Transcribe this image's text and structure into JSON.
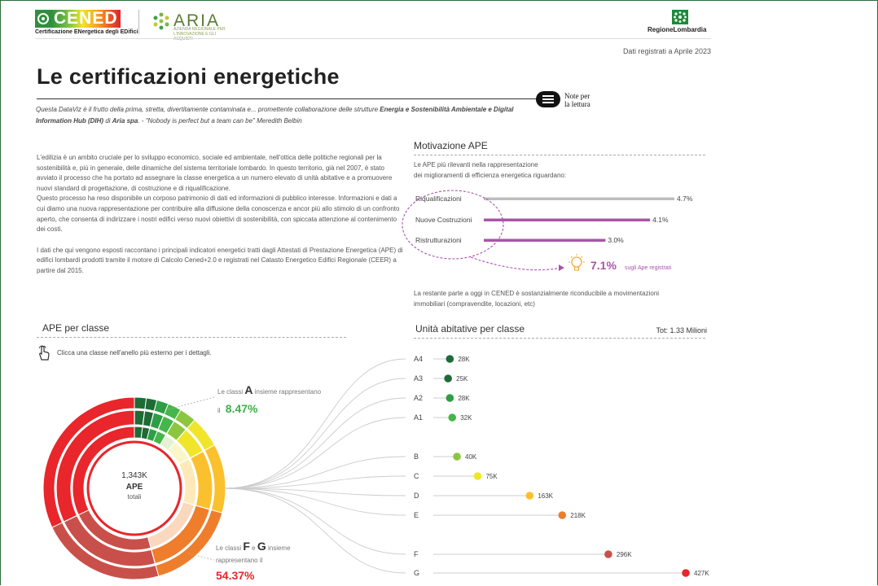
{
  "header": {
    "cened_logo_text": "CENED",
    "cened_tagline": "Certificazione ENergetica degli EDifici",
    "aria_logo_text": "ARIA",
    "aria_tagline": "AZIENDA REGIONALE PER L'INNOVAZIONE E GLI ACQUISTI",
    "region_logo_text": "RegioneLombardia",
    "date_note": "Dati registrati a Aprile 2023",
    "note_button_line1": "Note per",
    "note_button_line2": "la lettura"
  },
  "title": "Le certificazioni energetiche",
  "subtitle": {
    "part1": "Questa DataViz è il frutto della prima, stretta, divertitamente contaminata e... promettente collaborazione delle strutture ",
    "bold1": "Energia e Sostenibilità Ambientale e Digital Information Hub (DIH)",
    "part2": " di ",
    "bold2": "Aria spa",
    "part3": ". - \"Nobody is perfect but a team can be\" Meredith Belbin"
  },
  "intro": {
    "p1": "L'edilizia è un ambito cruciale per lo sviluppo economico, sociale ed ambientale, nell'ottica delle politiche regionali per la sostenibilità e, più in generale, delle dinamiche del sistema territoriale lombardo. In questo territorio, già nel 2007, è stato avviato il processo che ha portato ad assegnare la classe energetica a un numero elevato di unità abitative e a promuovere nuovi standard di progettazione, di costruzione e di riqualificazione.",
    "p2": "Questo processo ha reso disponibile un corposo patrimonio di dati ed informazioni di pubblico interesse. Informazioni e dati a cui diamo una nuova rappresentazione per contribuire alla diffusione della conoscenza e ancor più allo stimolo di un confronto aperto, che consenta di indirizzare i nostri edifici verso nuovi obiettivi di sostenibilità, con spiccata attenzione al contenimento dei costi.",
    "p3": "I dati che qui vengono esposti raccontano i principali indicatori energetici tratti dagli Attestati di Prestazione Energetica (APE) di edifici lombardi prodotti tramite il motore di Calcolo Cened+2.0 e registrati nel Catasto Energetico Edifici Regionale (CEER) a partire dal 2015."
  },
  "motivazione": {
    "heading": "Motivazione APE",
    "desc_line1": "Le APE più rilevanti nella rappresentazione",
    "desc_line2": "dei miglioramenti di efficienza energetica riguardano:",
    "bars": [
      {
        "label": "Riqualificazioni",
        "value": 4.7,
        "value_label": "4.7%",
        "color": "#bdbdbd"
      },
      {
        "label": "Nuove Costruzioni",
        "value": 4.1,
        "value_label": "4.1%",
        "color": "#a855a8"
      },
      {
        "label": "Ristrutturazioni",
        "value": 3.0,
        "value_label": "3.0%",
        "color": "#a855a8"
      }
    ],
    "total_value": "7.1%",
    "total_note": "sugli Ape registrati",
    "footer": "La restante parte a oggi in CENED è sostanzialmente riconducibile a movimentazioni immobiliari (compravendite, locazioni, etc)"
  },
  "ape_classe": {
    "heading": "APE per classe",
    "hint": "Clicca una classe nell'anello più esterno per i dettagli.",
    "center_value": "1,343K",
    "center_label1": "APE",
    "center_label2": "totali",
    "note_a_prefix": "Le classi",
    "note_a_letter": "A",
    "note_a_suffix": "insieme rappresentano",
    "note_a_il": "il",
    "note_a_value": "8.47%",
    "note_fg_prefix": "Le classi",
    "note_fg_letter1": "F",
    "note_fg_e": "e",
    "note_fg_letter2": "G",
    "note_fg_suffix": "insieme",
    "note_fg_line2": "rappresentano il",
    "note_fg_value": "54.37%"
  },
  "unita": {
    "heading": "Unità abitative per classe",
    "total": "Tot: 1.33 Milioni"
  },
  "chart_data": {
    "type": "scatter",
    "categories": [
      "A4",
      "A3",
      "A2",
      "A1",
      "B",
      "C",
      "D",
      "E",
      "F",
      "G"
    ],
    "values": [
      28,
      25,
      28,
      32,
      40,
      75,
      163,
      218,
      296,
      427
    ],
    "value_labels": [
      "28K",
      "25K",
      "28K",
      "32K",
      "40K",
      "75K",
      "163K",
      "218K",
      "296K",
      "427K"
    ],
    "colors": [
      "#1e6b35",
      "#1e6b35",
      "#2e9e45",
      "#45b649",
      "#8cc63e",
      "#f0e52b",
      "#fbc02d",
      "#ee7d2c",
      "#c9504a",
      "#e8262b"
    ],
    "xlim": [
      0,
      427
    ]
  }
}
